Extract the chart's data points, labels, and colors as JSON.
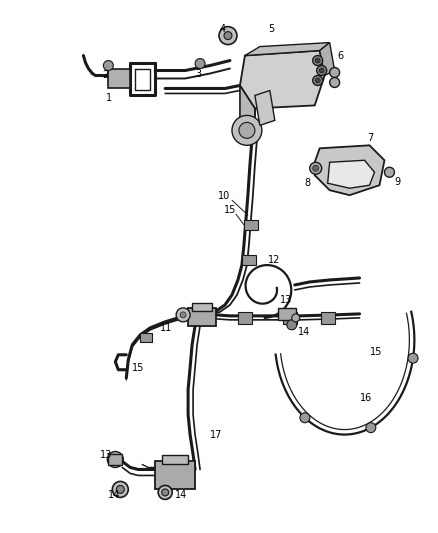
{
  "bg_color": "#ffffff",
  "line_color": "#1a1a1a",
  "label_color": "#000000",
  "figsize": [
    4.38,
    5.33
  ],
  "dpi": 100,
  "lw_main": 1.6,
  "lw_thick": 2.2,
  "lw_thin": 0.9
}
